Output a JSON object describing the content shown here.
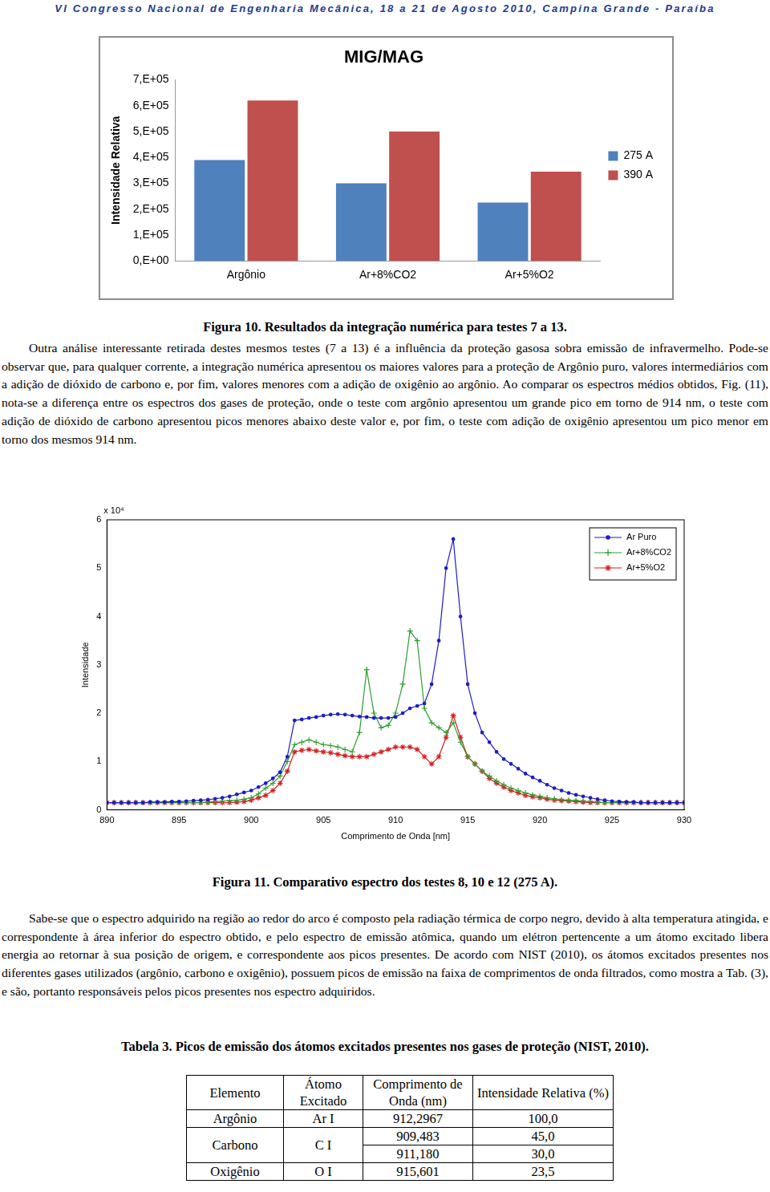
{
  "header": "VI Congresso Nacional de Engenharia Mecânica, 18 a 21 de Agosto 2010, Campina Grande - Paraíba",
  "chart_data": [
    {
      "type": "bar",
      "title": "MIG/MAG",
      "y_label": "Intensidade Relativa",
      "categories": [
        "Argônio",
        "Ar+8%CO2",
        "Ar+5%O2"
      ],
      "series": [
        {
          "name": "275 A",
          "color": "#4f81bd",
          "values": [
            390000,
            300000,
            225000
          ]
        },
        {
          "name": "390 A",
          "color": "#c0504d",
          "values": [
            620000,
            500000,
            345000
          ]
        }
      ],
      "ylim": [
        0,
        700000
      ],
      "yticks": [
        {
          "value": 0,
          "label": "0,E+00"
        },
        {
          "value": 100000,
          "label": "1,E+05"
        },
        {
          "value": 200000,
          "label": "2,E+05"
        },
        {
          "value": 300000,
          "label": "3,E+05"
        },
        {
          "value": 400000,
          "label": "4,E+05"
        },
        {
          "value": 500000,
          "label": "5,E+05"
        },
        {
          "value": 600000,
          "label": "6,E+05"
        },
        {
          "value": 700000,
          "label": "7,E+05"
        }
      ],
      "grid": false,
      "legend": "right"
    },
    {
      "type": "line",
      "x_label": "Comprimento de Onda [nm]",
      "y_label": "Intensidade",
      "annotation": "x 10⁴",
      "x": [
        890,
        890.5,
        891,
        891.5,
        892,
        892.5,
        893,
        893.5,
        894,
        894.5,
        895,
        895.5,
        896,
        896.5,
        897,
        897.5,
        898,
        898.5,
        899,
        899.5,
        900,
        900.5,
        901,
        901.5,
        902,
        902.5,
        903,
        903.5,
        904,
        904.5,
        905,
        905.5,
        906,
        906.5,
        907,
        907.5,
        908,
        908.5,
        909,
        909.5,
        910,
        910.5,
        911,
        911.5,
        912,
        912.5,
        913,
        913.5,
        914,
        914.5,
        915,
        915.5,
        916,
        916.5,
        917,
        917.5,
        918,
        918.5,
        919,
        919.5,
        920,
        920.5,
        921,
        921.5,
        922,
        922.5,
        923,
        923.5,
        924,
        924.5,
        925,
        925.5,
        926,
        926.5,
        927,
        927.5,
        928,
        928.5,
        929,
        929.5,
        930
      ],
      "series": [
        {
          "name": "Ar Puro",
          "color": "#1c1cc8",
          "marker": "circle",
          "line_style": "solid",
          "values": [
            0.15,
            0.15,
            0.15,
            0.15,
            0.15,
            0.15,
            0.16,
            0.16,
            0.16,
            0.17,
            0.17,
            0.18,
            0.19,
            0.2,
            0.21,
            0.23,
            0.25,
            0.28,
            0.32,
            0.36,
            0.4,
            0.47,
            0.55,
            0.65,
            0.78,
            1.1,
            1.85,
            1.87,
            1.9,
            1.92,
            1.95,
            1.97,
            1.98,
            1.97,
            1.95,
            1.93,
            1.92,
            1.9,
            1.9,
            1.9,
            1.92,
            2.0,
            2.1,
            2.15,
            2.2,
            2.6,
            3.5,
            5.0,
            5.6,
            4.0,
            2.6,
            2.0,
            1.6,
            1.4,
            1.2,
            1.05,
            0.95,
            0.85,
            0.75,
            0.67,
            0.6,
            0.52,
            0.45,
            0.4,
            0.35,
            0.31,
            0.28,
            0.25,
            0.22,
            0.2,
            0.18,
            0.17,
            0.16,
            0.16,
            0.15,
            0.15,
            0.15,
            0.15,
            0.15,
            0.15,
            0.15
          ]
        },
        {
          "name": "Ar+8%CO2",
          "color": "#2e9e2e",
          "marker": "plus",
          "line_style": "solid",
          "values": [
            0.15,
            0.15,
            0.15,
            0.15,
            0.15,
            0.15,
            0.15,
            0.15,
            0.15,
            0.15,
            0.15,
            0.15,
            0.15,
            0.15,
            0.16,
            0.17,
            0.18,
            0.19,
            0.2,
            0.22,
            0.25,
            0.33,
            0.45,
            0.55,
            0.7,
            1.0,
            1.35,
            1.4,
            1.45,
            1.4,
            1.35,
            1.33,
            1.3,
            1.25,
            1.2,
            1.6,
            2.9,
            2.0,
            1.7,
            1.75,
            2.0,
            2.6,
            3.7,
            3.5,
            2.1,
            1.8,
            1.7,
            1.6,
            1.8,
            1.4,
            1.1,
            0.95,
            0.8,
            0.7,
            0.6,
            0.52,
            0.45,
            0.4,
            0.35,
            0.31,
            0.28,
            0.25,
            0.23,
            0.21,
            0.2,
            0.19,
            0.18,
            0.17,
            0.16,
            0.15,
            0.15,
            0.15,
            0.15,
            0.15,
            0.15,
            0.15,
            0.15,
            0.15,
            0.15,
            0.15,
            0.15
          ]
        },
        {
          "name": "Ar+5%O2",
          "color": "#d42020",
          "marker": "star",
          "line_style": "solid",
          "values": [
            0.15,
            0.15,
            0.15,
            0.15,
            0.15,
            0.15,
            0.15,
            0.15,
            0.15,
            0.15,
            0.15,
            0.15,
            0.15,
            0.15,
            0.15,
            0.15,
            0.15,
            0.15,
            0.16,
            0.17,
            0.2,
            0.25,
            0.3,
            0.4,
            0.55,
            0.8,
            1.2,
            1.23,
            1.25,
            1.22,
            1.2,
            1.18,
            1.15,
            1.12,
            1.1,
            1.1,
            1.1,
            1.15,
            1.2,
            1.25,
            1.3,
            1.3,
            1.3,
            1.25,
            1.1,
            0.95,
            1.1,
            1.5,
            1.95,
            1.5,
            1.1,
            0.95,
            0.8,
            0.65,
            0.55,
            0.47,
            0.4,
            0.35,
            0.3,
            0.27,
            0.25,
            0.22,
            0.2,
            0.19,
            0.18,
            0.17,
            0.16,
            0.15,
            0.15,
            0.15,
            0.15,
            0.15,
            0.15,
            0.15,
            0.15,
            0.15,
            0.15,
            0.15,
            0.15,
            0.15,
            0.15
          ]
        }
      ],
      "xlim": [
        890,
        930
      ],
      "xticks": [
        890,
        895,
        900,
        905,
        910,
        915,
        920,
        925,
        930
      ],
      "ylim": [
        0,
        6
      ],
      "yticks": [
        0,
        1,
        2,
        3,
        4,
        5,
        6
      ],
      "grid": false,
      "legend": "upper right"
    }
  ],
  "captions": {
    "figure10": "Figura 10. Resultados da integração numérica para testes 7 a 13.",
    "figure11": "Figura 11. Comparativo espectro dos testes 8, 10 e 12 (275 A).",
    "table3": "Tabela 3. Picos de emissão dos átomos excitados presentes nos gases de proteção (NIST, 2010)."
  },
  "paragraphs": [
    "Outra análise interessante retirada destes mesmos testes (7 a 13) é a influência da proteção gasosa sobra emissão de infravermelho. Pode-se observar que, para qualquer corrente, a integração numérica apresentou os maiores valores para a proteção de Argônio puro, valores intermediários com a adição de dióxido de carbono e, por fim, valores menores com a adição de oxigênio ao argônio. Ao comparar os espectros médios obtidos, Fig. (11), nota-se a diferença entre os espectros dos gases de proteção, onde o teste com argônio apresentou um grande pico em torno de 914 nm, o teste com adição de dióxido de carbono apresentou picos menores abaixo deste valor e, por fim, o teste com adição de oxigênio apresentou um pico menor em torno dos mesmos 914 nm.",
    "Sabe-se que o espectro adquirido na região ao redor do arco é composto pela radiação térmica de corpo negro, devido à alta temperatura atingida, e correspondente à área inferior do espectro obtido, e pelo espectro de emissão atômica, quando um elétron pertencente a um átomo excitado libera energia ao retornar à sua posição de origem, e correspondente aos picos presentes. De acordo com NIST (2010), os átomos excitados presentes nos diferentes gases utilizados (argônio, carbono e oxigênio), possuem picos de emissão na faixa de comprimentos de onda filtrados, como mostra a Tab. (3), e são, portanto responsáveis pelos picos presentes nos espectro adquiridos."
  ],
  "table": {
    "header": [
      "Elemento",
      "Átomo Excitado",
      "Comprimento de Onda (nm)",
      "Intensidade Relativa (%)"
    ],
    "rows": [
      {
        "element": "Argônio",
        "atom": "Ar I",
        "lines": [
          {
            "wavelength": "912,2967",
            "intensity": "100,0"
          }
        ]
      },
      {
        "element": "Carbono",
        "atom": "C I",
        "lines": [
          {
            "wavelength": "909,483",
            "intensity": "45,0"
          },
          {
            "wavelength": "911,180",
            "intensity": "30,0"
          }
        ]
      },
      {
        "element": "Oxigênio",
        "atom": "O I",
        "lines": [
          {
            "wavelength": "915,601",
            "intensity": "23,5"
          }
        ]
      }
    ]
  }
}
